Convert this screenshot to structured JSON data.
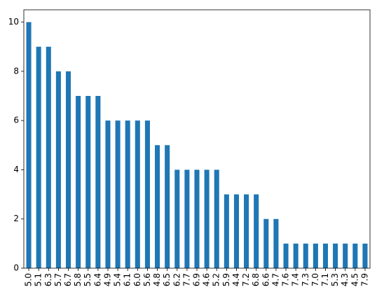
{
  "chart_data": {
    "type": "bar",
    "categories": [
      "5.0",
      "5.1",
      "6.3",
      "5.7",
      "6.7",
      "5.8",
      "5.5",
      "6.4",
      "4.9",
      "5.4",
      "6.1",
      "6.0",
      "5.6",
      "4.8",
      "6.5",
      "6.2",
      "7.7",
      "6.9",
      "4.6",
      "5.2",
      "5.9",
      "4.4",
      "7.2",
      "6.8",
      "6.6",
      "4.7",
      "7.6",
      "7.4",
      "7.3",
      "7.0",
      "7.1",
      "5.3",
      "4.3",
      "4.5",
      "7.9"
    ],
    "values": [
      10,
      9,
      9,
      8,
      8,
      7,
      7,
      7,
      6,
      6,
      6,
      6,
      6,
      5,
      5,
      4,
      4,
      4,
      4,
      4,
      3,
      3,
      3,
      3,
      2,
      2,
      1,
      1,
      1,
      1,
      1,
      1,
      1,
      1,
      1
    ],
    "color": "#1f77b4",
    "ylim": [
      0,
      10.5
    ],
    "yticks": [
      0,
      2,
      4,
      6,
      8,
      10
    ],
    "grid": false
  }
}
